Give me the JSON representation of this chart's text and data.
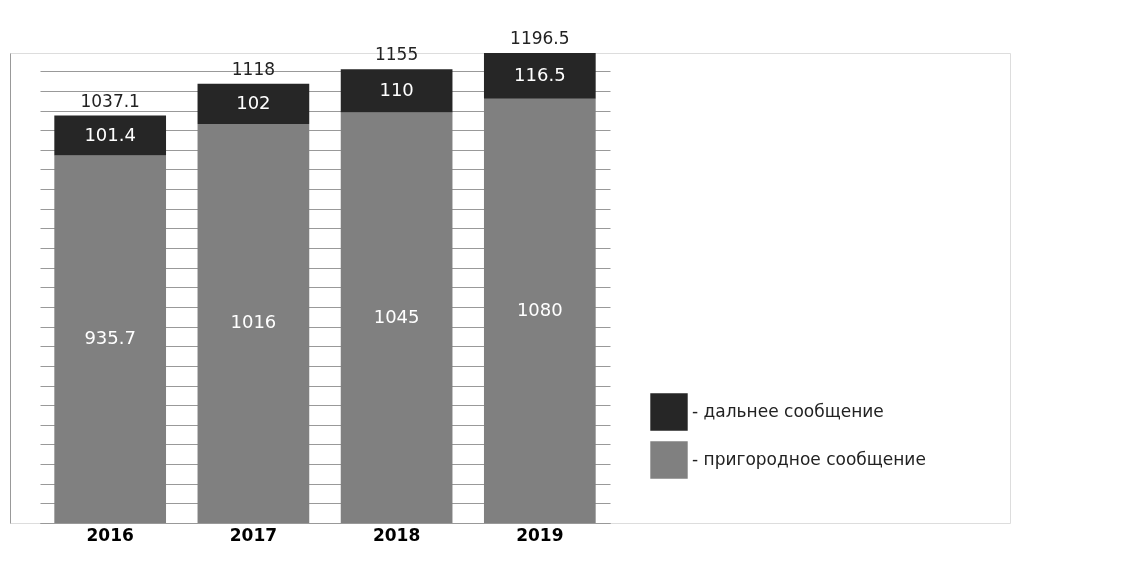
{
  "chart_data": {
    "type": "bar",
    "stacked": true,
    "categories": [
      "2016",
      "2017",
      "2018",
      "2019"
    ],
    "series": [
      {
        "name": "- пригородное сообщение",
        "color": "#808080",
        "values": [
          935.7,
          1016,
          1045,
          1080
        ]
      },
      {
        "name": "- дальнее сообщение",
        "color": "#262626",
        "values": [
          101.4,
          102,
          110,
          116.5
        ]
      }
    ],
    "totals": [
      "1037.1",
      "1118",
      "1155",
      "1196.5"
    ],
    "data_labels": true,
    "grid": "y",
    "legend": "bottom right",
    "tick_labels": "x"
  }
}
